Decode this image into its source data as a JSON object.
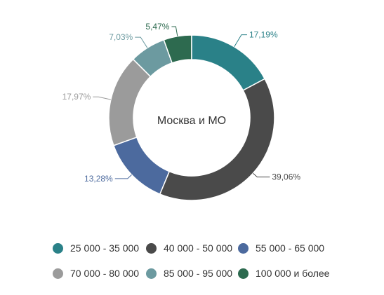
{
  "chart_data": {
    "type": "pie",
    "center_label": "Москва и МО",
    "slices": [
      {
        "label": "25 000 - 35 000",
        "value": 17.19,
        "value_label": "17,19%",
        "color": "#2a8188"
      },
      {
        "label": "40 000 - 50 000",
        "value": 39.06,
        "value_label": "39,06%",
        "color": "#4a4a4a"
      },
      {
        "label": "55 000 - 65 000",
        "value": 13.28,
        "value_label": "13,28%",
        "color": "#4c6a9e"
      },
      {
        "label": "70 000 - 80 000",
        "value": 17.97,
        "value_label": "17,97%",
        "color": "#9b9b9b"
      },
      {
        "label": "85 000 - 95 000",
        "value": 7.03,
        "value_label": "7,03%",
        "color": "#6c9aa0"
      },
      {
        "label": "100 000 и более",
        "value": 5.47,
        "value_label": "5,47%",
        "color": "#2d6a4f"
      }
    ],
    "legend_position": "bottom"
  }
}
